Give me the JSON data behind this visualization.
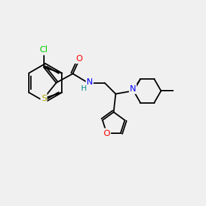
{
  "bg_color": "#f0f0f0",
  "bond_color": "#000000",
  "bond_width": 1.4,
  "figsize": [
    3.0,
    3.0
  ],
  "dpi": 100,
  "Cl_color": "#00cc00",
  "O_color": "#ff0000",
  "N_color": "#0000ff",
  "H_color": "#008888",
  "S_color": "#cccc00",
  "xlim": [
    0,
    10
  ],
  "ylim": [
    0,
    10
  ]
}
